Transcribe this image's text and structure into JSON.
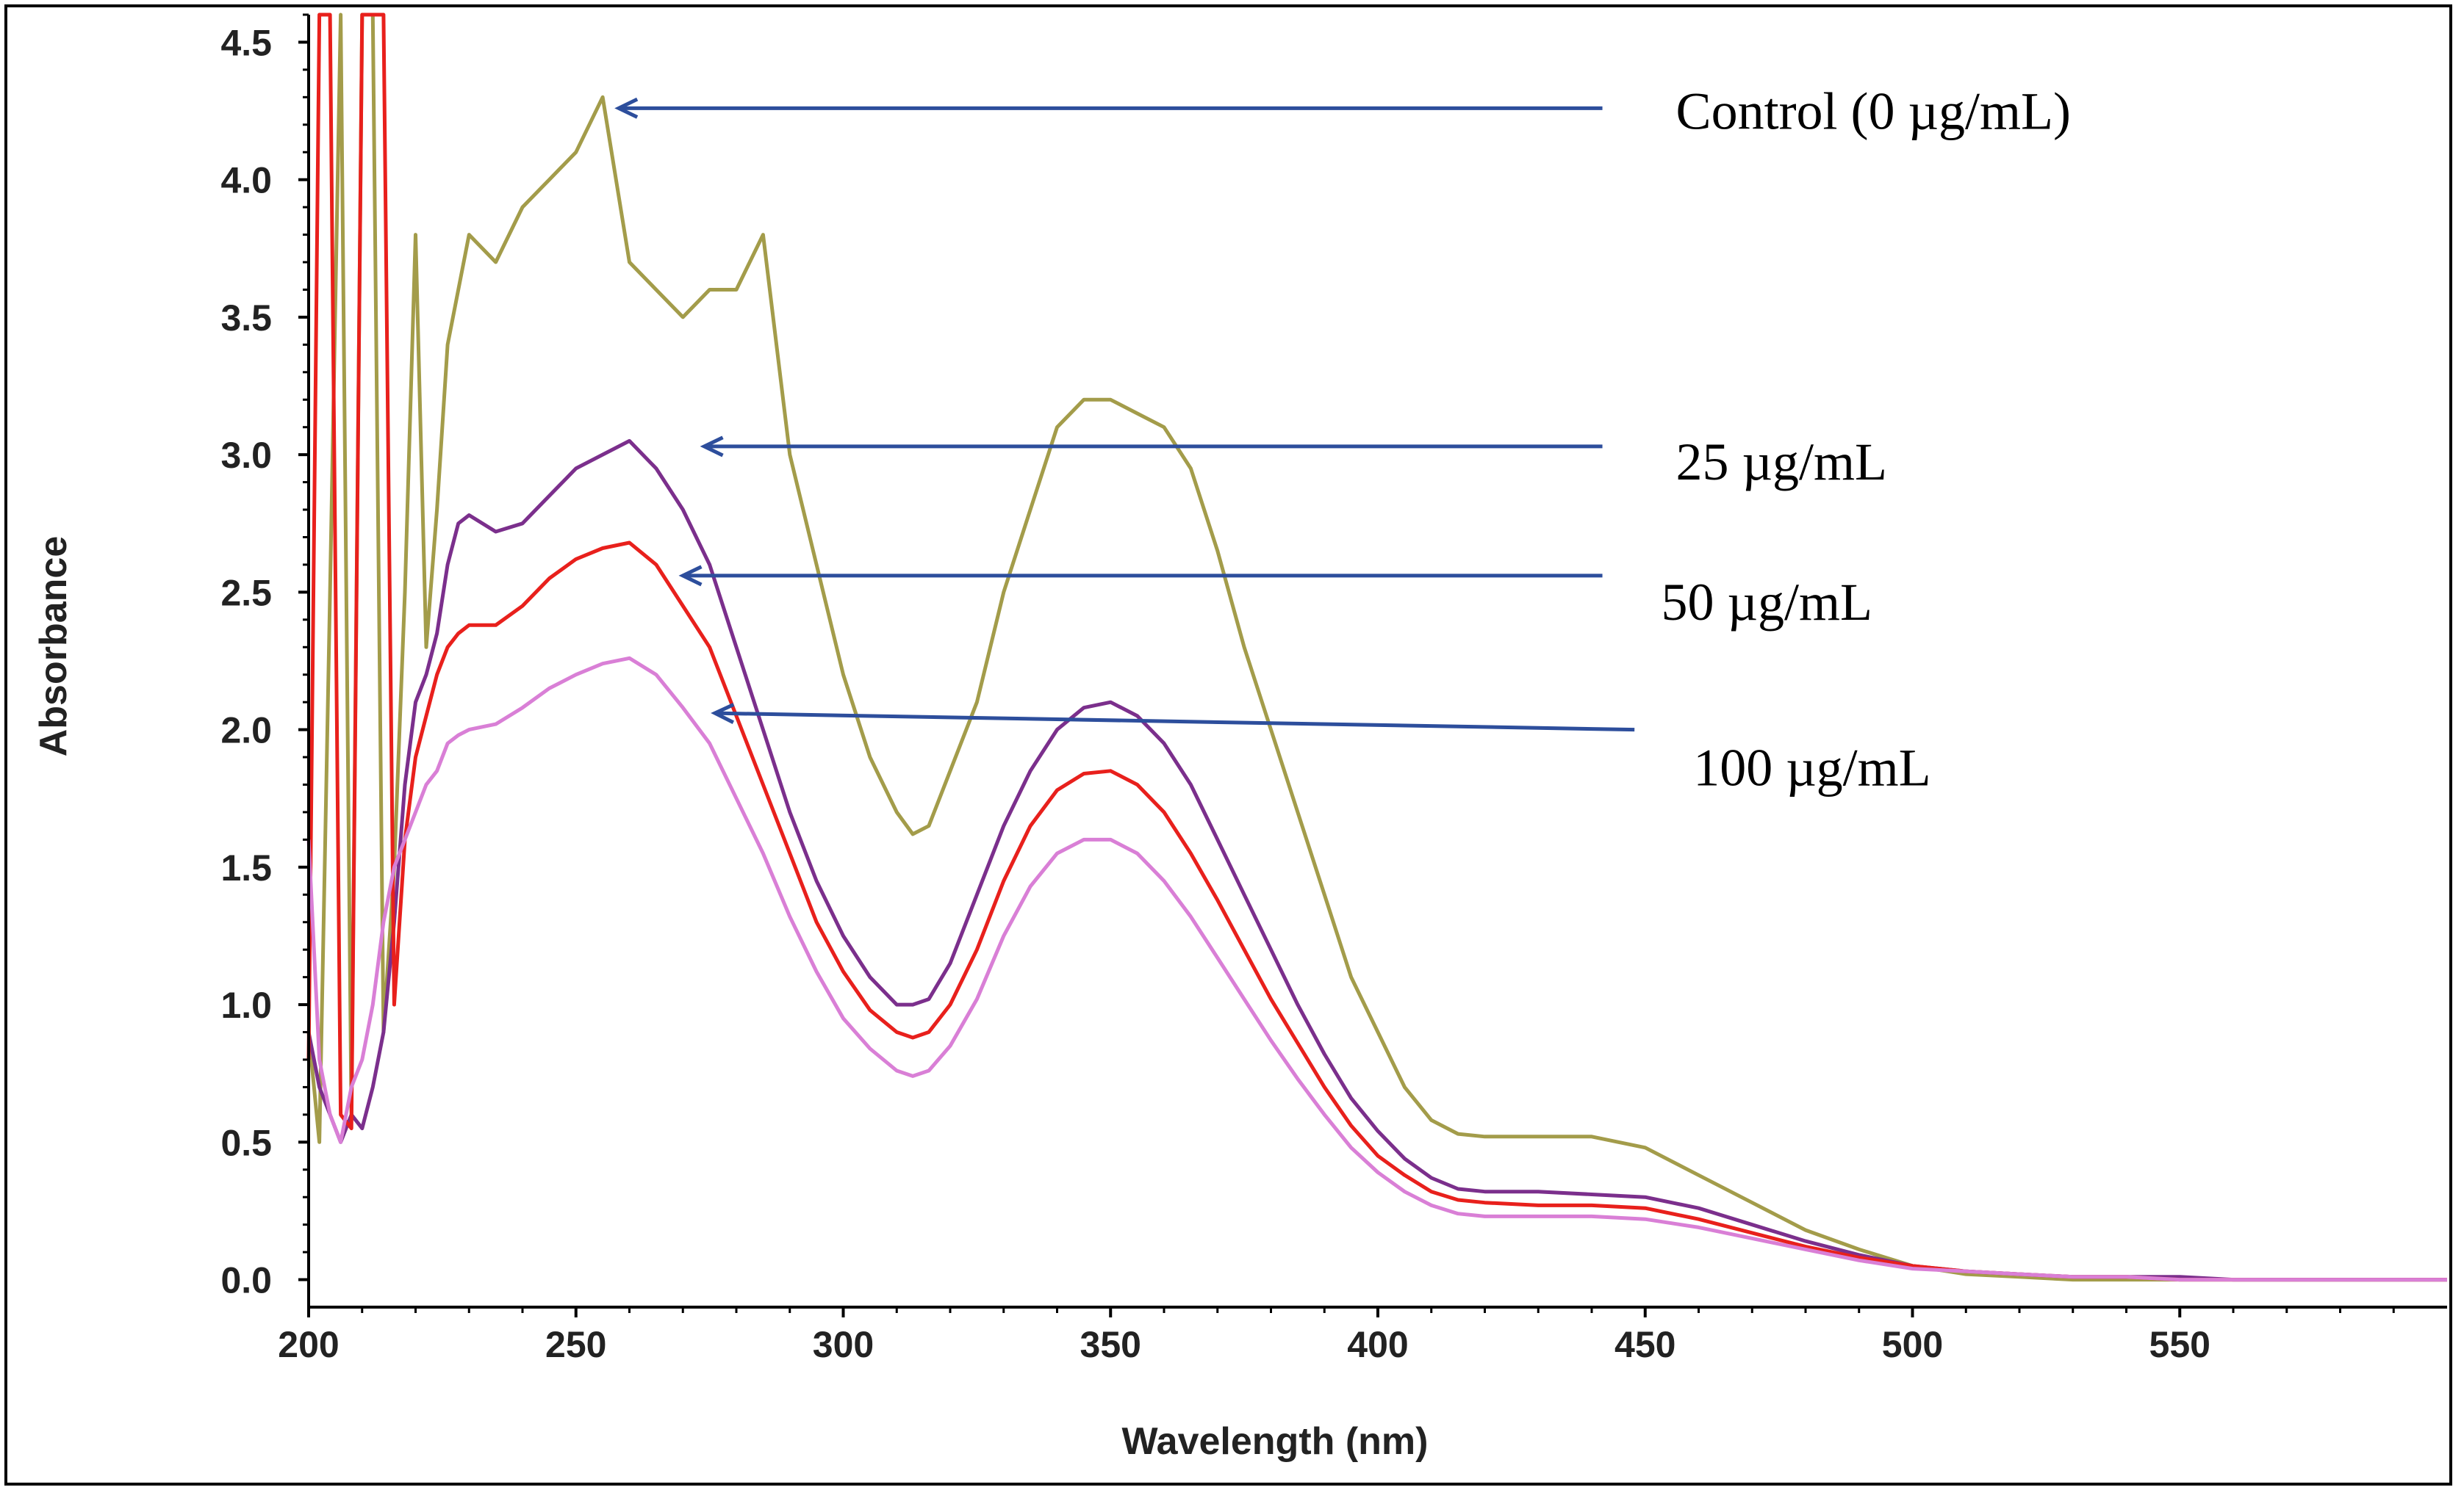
{
  "chart_data": {
    "type": "line",
    "xlabel": "Wavelength (nm)",
    "ylabel": "Absorbance",
    "xlim": [
      200,
      600
    ],
    "ylim": [
      -0.1,
      4.6
    ],
    "x_ticks": [
      200,
      250,
      300,
      350,
      400,
      450,
      500,
      550
    ],
    "y_ticks": [
      0.0,
      0.5,
      1.0,
      1.5,
      2.0,
      2.5,
      3.0,
      3.5,
      4.0,
      4.5
    ],
    "y_tick_labels": [
      "0.0",
      "0.5",
      "1.0",
      "1.5",
      "2.0",
      "2.5",
      "3.0",
      "3.5",
      "4.0",
      "4.5"
    ],
    "grid": false,
    "series": [
      {
        "name": "Control (0 µg/mL)",
        "color": "#a39c4a",
        "x": [
          200,
          202,
          204,
          206,
          208,
          210,
          212,
          214,
          216,
          218,
          220,
          222,
          224,
          226,
          228,
          230,
          235,
          240,
          245,
          250,
          255,
          260,
          265,
          270,
          275,
          280,
          285,
          290,
          295,
          300,
          305,
          310,
          313,
          316,
          320,
          325,
          330,
          335,
          340,
          345,
          350,
          355,
          360,
          365,
          370,
          375,
          380,
          385,
          390,
          395,
          400,
          405,
          410,
          415,
          420,
          430,
          440,
          450,
          460,
          470,
          480,
          490,
          500,
          510,
          520,
          530,
          540,
          550,
          560,
          570,
          580,
          590,
          600
        ],
        "y": [
          0.9,
          0.5,
          2.5,
          4.6,
          0.6,
          4.6,
          4.6,
          0.9,
          1.5,
          2.5,
          3.8,
          2.3,
          2.8,
          3.4,
          3.6,
          3.8,
          3.7,
          3.9,
          4.0,
          4.1,
          4.3,
          3.7,
          3.6,
          3.5,
          3.6,
          3.6,
          3.8,
          3.0,
          2.6,
          2.2,
          1.9,
          1.7,
          1.62,
          1.65,
          1.85,
          2.1,
          2.5,
          2.8,
          3.1,
          3.2,
          3.2,
          3.15,
          3.1,
          2.95,
          2.65,
          2.3,
          2.0,
          1.7,
          1.4,
          1.1,
          0.9,
          0.7,
          0.58,
          0.53,
          0.52,
          0.52,
          0.52,
          0.48,
          0.38,
          0.28,
          0.18,
          0.11,
          0.05,
          0.02,
          0.01,
          0.0,
          0.0,
          0.0,
          0.0,
          0.0,
          0.0,
          0.0,
          0.0
        ]
      },
      {
        "name": "25 µg/mL",
        "color": "#7b2f8c",
        "x": [
          200,
          202,
          204,
          206,
          208,
          210,
          212,
          214,
          216,
          218,
          220,
          222,
          224,
          226,
          228,
          230,
          235,
          240,
          245,
          250,
          255,
          260,
          265,
          270,
          275,
          280,
          285,
          290,
          295,
          300,
          305,
          310,
          313,
          316,
          320,
          325,
          330,
          335,
          340,
          345,
          350,
          355,
          360,
          365,
          370,
          375,
          380,
          385,
          390,
          395,
          400,
          405,
          410,
          415,
          420,
          430,
          440,
          450,
          460,
          470,
          480,
          490,
          500,
          510,
          520,
          530,
          540,
          550,
          560,
          570,
          580,
          590,
          600
        ],
        "y": [
          0.9,
          0.7,
          0.6,
          0.5,
          0.6,
          0.55,
          0.7,
          0.9,
          1.3,
          1.8,
          2.1,
          2.2,
          2.35,
          2.6,
          2.75,
          2.78,
          2.72,
          2.75,
          2.85,
          2.95,
          3.0,
          3.05,
          2.95,
          2.8,
          2.6,
          2.3,
          2.0,
          1.7,
          1.45,
          1.25,
          1.1,
          1.0,
          1.0,
          1.02,
          1.15,
          1.4,
          1.65,
          1.85,
          2.0,
          2.08,
          2.1,
          2.05,
          1.95,
          1.8,
          1.6,
          1.4,
          1.2,
          1.0,
          0.82,
          0.66,
          0.54,
          0.44,
          0.37,
          0.33,
          0.32,
          0.32,
          0.31,
          0.3,
          0.26,
          0.2,
          0.14,
          0.09,
          0.05,
          0.03,
          0.02,
          0.01,
          0.01,
          0.01,
          0.0,
          0.0,
          0.0,
          0.0,
          0.0
        ]
      },
      {
        "name": "50 µg/mL",
        "color": "#e8201c",
        "x": [
          200,
          202,
          204,
          206,
          208,
          210,
          212,
          214,
          216,
          218,
          220,
          222,
          224,
          226,
          228,
          230,
          235,
          240,
          245,
          250,
          255,
          260,
          265,
          270,
          275,
          280,
          285,
          290,
          295,
          300,
          305,
          310,
          313,
          316,
          320,
          325,
          330,
          335,
          340,
          345,
          350,
          355,
          360,
          365,
          370,
          375,
          380,
          385,
          390,
          395,
          400,
          405,
          410,
          415,
          420,
          430,
          440,
          450,
          460,
          470,
          480,
          490,
          500,
          510,
          520,
          530,
          540,
          550,
          560,
          570,
          580,
          590,
          600
        ],
        "y": [
          0.8,
          4.6,
          4.6,
          0.6,
          0.55,
          4.6,
          4.6,
          4.6,
          1.0,
          1.6,
          1.9,
          2.05,
          2.2,
          2.3,
          2.35,
          2.38,
          2.38,
          2.45,
          2.55,
          2.62,
          2.66,
          2.68,
          2.6,
          2.45,
          2.3,
          2.05,
          1.8,
          1.55,
          1.3,
          1.12,
          0.98,
          0.9,
          0.88,
          0.9,
          1.0,
          1.2,
          1.45,
          1.65,
          1.78,
          1.84,
          1.85,
          1.8,
          1.7,
          1.55,
          1.38,
          1.2,
          1.02,
          0.86,
          0.7,
          0.56,
          0.45,
          0.38,
          0.32,
          0.29,
          0.28,
          0.27,
          0.27,
          0.26,
          0.22,
          0.17,
          0.12,
          0.08,
          0.05,
          0.03,
          0.02,
          0.01,
          0.01,
          0.0,
          0.0,
          0.0,
          0.0,
          0.0,
          0.0
        ]
      },
      {
        "name": "100 µg/mL",
        "color": "#d97fd6",
        "x": [
          200,
          202,
          204,
          206,
          208,
          210,
          212,
          214,
          216,
          218,
          220,
          222,
          224,
          226,
          228,
          230,
          235,
          240,
          245,
          250,
          255,
          260,
          265,
          270,
          275,
          280,
          285,
          290,
          295,
          300,
          305,
          310,
          313,
          316,
          320,
          325,
          330,
          335,
          340,
          345,
          350,
          355,
          360,
          365,
          370,
          375,
          380,
          385,
          390,
          395,
          400,
          405,
          410,
          415,
          420,
          430,
          440,
          450,
          460,
          470,
          480,
          490,
          500,
          510,
          520,
          530,
          540,
          550,
          560,
          570,
          580,
          590,
          600
        ],
        "y": [
          1.6,
          0.8,
          0.6,
          0.5,
          0.7,
          0.8,
          1.0,
          1.3,
          1.5,
          1.6,
          1.7,
          1.8,
          1.85,
          1.95,
          1.98,
          2.0,
          2.02,
          2.08,
          2.15,
          2.2,
          2.24,
          2.26,
          2.2,
          2.08,
          1.95,
          1.75,
          1.55,
          1.32,
          1.12,
          0.95,
          0.84,
          0.76,
          0.74,
          0.76,
          0.85,
          1.02,
          1.25,
          1.43,
          1.55,
          1.6,
          1.6,
          1.55,
          1.45,
          1.32,
          1.17,
          1.02,
          0.87,
          0.73,
          0.6,
          0.48,
          0.39,
          0.32,
          0.27,
          0.24,
          0.23,
          0.23,
          0.23,
          0.22,
          0.19,
          0.15,
          0.11,
          0.07,
          0.04,
          0.03,
          0.02,
          0.01,
          0.01,
          0.0,
          0.0,
          0.0,
          0.0,
          0.0,
          0.0
        ]
      }
    ],
    "annotations": [
      {
        "name": "annotation-control",
        "text": "Control (0 µg/mL)",
        "arrow_from_x": 442,
        "arrow_from_y": 4.26,
        "arrow_to_x": 258,
        "arrow_to_y": 4.26
      },
      {
        "name": "annotation-25",
        "text": "25 µg/mL",
        "arrow_from_x": 442,
        "arrow_from_y": 3.03,
        "arrow_to_x": 274,
        "arrow_to_y": 3.03
      },
      {
        "name": "annotation-50",
        "text": "50 µg/mL",
        "arrow_from_x": 442,
        "arrow_from_y": 2.56,
        "arrow_to_x": 270,
        "arrow_to_y": 2.56
      },
      {
        "name": "annotation-100",
        "text": "100 µg/mL",
        "arrow_from_x": 448,
        "arrow_from_y": 2.0,
        "arrow_to_x": 276,
        "arrow_to_y": 2.06
      }
    ]
  }
}
